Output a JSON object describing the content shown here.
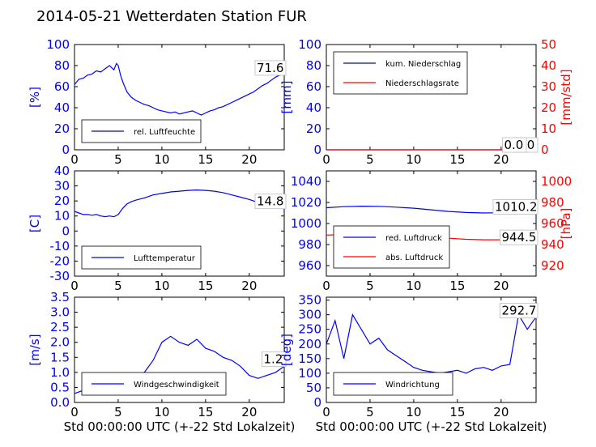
{
  "title": "2014-05-21 Wetterdaten Station FUR",
  "colors": {
    "blue": "#0000ff",
    "red": "#ff0000",
    "black": "#000000",
    "lightblue": "#8080ff"
  },
  "chart_data": [
    {
      "id": "humidity",
      "type": "line",
      "xlim": [
        0,
        24
      ],
      "ylim": [
        0,
        100
      ],
      "xticks": [
        0,
        5,
        10,
        15,
        20
      ],
      "yticks": [
        0,
        20,
        40,
        60,
        80,
        100
      ],
      "ylabel": "[%]",
      "annotation": "71.6",
      "legend": {
        "placement": "lower-left",
        "entries": [
          "rel. Luftfeuchte"
        ]
      },
      "series": [
        {
          "name": "rel. Luftfeuchte",
          "color": "#0000ff",
          "x": [
            0,
            0.5,
            1,
            1.5,
            2,
            2.5,
            3,
            3.5,
            4,
            4.5,
            4.8,
            5.0,
            5.3,
            5.6,
            6,
            6.5,
            7,
            7.5,
            8,
            8.5,
            9,
            9.5,
            10,
            10.5,
            11,
            11.5,
            12,
            12.5,
            13,
            13.5,
            14,
            14.5,
            15,
            15.5,
            16,
            16.5,
            17,
            17.5,
            18,
            18.5,
            19,
            19.5,
            20,
            20.5,
            21,
            21.5,
            22,
            22.5,
            23,
            23.5,
            24
          ],
          "y": [
            62,
            67,
            68,
            71,
            72,
            75,
            74,
            77,
            80,
            76,
            82,
            80,
            70,
            63,
            55,
            50,
            47,
            45,
            43,
            42,
            40,
            38,
            37,
            36,
            35,
            36,
            34,
            35,
            36,
            37,
            35,
            33,
            35,
            37,
            38,
            40,
            41,
            43,
            45,
            47,
            49,
            51,
            53,
            55,
            58,
            61,
            63,
            66,
            69,
            71,
            71.6
          ]
        }
      ]
    },
    {
      "id": "precip",
      "type": "line",
      "xlim": [
        0,
        24
      ],
      "ylim": [
        0,
        100
      ],
      "ylim_right": [
        0,
        50
      ],
      "xticks": [
        0,
        5,
        10,
        15,
        20
      ],
      "yticks": [
        0,
        20,
        40,
        60,
        80,
        100
      ],
      "yticks_right": [
        0,
        10,
        20,
        30,
        40,
        50
      ],
      "ylabel": "[mm]",
      "ylabel_right": "[mm/std]",
      "annotation": "0.0",
      "annotation2": "0.0",
      "legend": {
        "placement": "upper-left",
        "entries": [
          "kum. Niederschlag",
          "Niederschlagsrate"
        ]
      },
      "series": [
        {
          "name": "kum. Niederschlag",
          "color": "#0000ff",
          "x": [
            0,
            24
          ],
          "y": [
            0,
            0
          ]
        },
        {
          "name": "Niederschlagsrate",
          "color": "#ff0000",
          "x": [
            0,
            24
          ],
          "y": [
            0,
            0
          ],
          "axis": "right"
        }
      ]
    },
    {
      "id": "temp",
      "type": "line",
      "xlim": [
        0,
        24
      ],
      "ylim": [
        -30,
        40
      ],
      "xticks": [
        0,
        5,
        10,
        15,
        20
      ],
      "yticks": [
        -30,
        -20,
        -10,
        0,
        10,
        20,
        30,
        40
      ],
      "ylabel": "[C]",
      "annotation": "14.8",
      "legend": {
        "placement": "lower-left",
        "entries": [
          "Lufttemperatur"
        ]
      },
      "series": [
        {
          "name": "Lufttemperatur",
          "color": "#0000ff",
          "x": [
            0,
            0.5,
            1,
            1.5,
            2,
            2.5,
            3,
            3.5,
            4,
            4.5,
            5,
            5.5,
            6,
            6.5,
            7,
            8,
            9,
            10,
            11,
            12,
            13,
            14,
            15,
            16,
            17,
            18,
            19,
            20,
            21,
            22,
            23,
            24
          ],
          "y": [
            13,
            12,
            11,
            11,
            10.5,
            11,
            10,
            9.5,
            10,
            9.5,
            11,
            15,
            18,
            19.5,
            20.5,
            22,
            24,
            25,
            26,
            26.5,
            27,
            27.3,
            27,
            26.5,
            25.5,
            24,
            22.5,
            21,
            19,
            17,
            16,
            14.8
          ]
        }
      ]
    },
    {
      "id": "pressure",
      "type": "line",
      "xlim": [
        0,
        24
      ],
      "ylim": [
        950,
        1050
      ],
      "ylim_right": [
        910,
        1010
      ],
      "xticks": [
        0,
        5,
        10,
        15,
        20
      ],
      "yticks": [
        960,
        980,
        1000,
        1020,
        1040
      ],
      "yticks_right": [
        920,
        940,
        960,
        980,
        1000
      ],
      "ylabel_right": "[hPa]",
      "annotation": "1010.2",
      "annotation2": "944.5",
      "legend": {
        "placement": "lower-left",
        "entries": [
          "red. Luftdruck",
          "abs. Luftdruck"
        ]
      },
      "series": [
        {
          "name": "red. Luftdruck",
          "color": "#0000ff",
          "x": [
            0,
            2,
            4,
            6,
            8,
            10,
            12,
            14,
            16,
            18,
            20,
            22,
            24
          ],
          "y": [
            1015,
            1016,
            1016.5,
            1016.3,
            1015.5,
            1014.5,
            1013,
            1011.5,
            1010.5,
            1010,
            1010.2,
            1010.5,
            1010.2
          ]
        },
        {
          "name": "abs. Luftdruck",
          "color": "#ff0000",
          "axis": "right",
          "x": [
            0,
            2,
            4,
            6,
            8,
            10,
            12,
            14,
            16,
            18,
            20,
            22,
            24
          ],
          "y": [
            949,
            949.5,
            950,
            950,
            949.5,
            948.5,
            947.5,
            946,
            945,
            944.5,
            944.5,
            944.8,
            944.5
          ]
        }
      ]
    },
    {
      "id": "wind",
      "type": "line",
      "xlim": [
        0,
        24
      ],
      "ylim": [
        0,
        3.5
      ],
      "xticks": [
        0,
        5,
        10,
        15,
        20
      ],
      "yticks": [
        0.0,
        0.5,
        1.0,
        1.5,
        2.0,
        2.5,
        3.0,
        3.5
      ],
      "ylabel": "[m/s]",
      "xlabel": "Std 00:00:00 UTC (+-22 Std Lokalzeit)",
      "annotation": "1.2",
      "legend": {
        "placement": "lower-left",
        "entries": [
          "Windgeschwindigkeit"
        ]
      },
      "series": [
        {
          "name": "Windgeschwindigkeit",
          "color": "#0000ff",
          "x": [
            0,
            1,
            2,
            3,
            4,
            5,
            6,
            7,
            8,
            9,
            10,
            11,
            12,
            13,
            14,
            15,
            16,
            17,
            18,
            19,
            20,
            21,
            22,
            23,
            24
          ],
          "y": [
            0.3,
            0.4,
            0.6,
            0.5,
            0.6,
            0.5,
            0.7,
            0.9,
            1.0,
            1.4,
            2.0,
            2.2,
            2.0,
            1.9,
            2.1,
            1.8,
            1.7,
            1.5,
            1.4,
            1.2,
            0.9,
            0.8,
            0.9,
            1.0,
            1.2
          ]
        }
      ]
    },
    {
      "id": "winddir",
      "type": "line",
      "xlim": [
        0,
        24
      ],
      "ylim": [
        0,
        360
      ],
      "xticks": [
        0,
        5,
        10,
        15,
        20
      ],
      "yticks": [
        0,
        50,
        100,
        150,
        200,
        250,
        300,
        350
      ],
      "ylabel": "[deg]",
      "xlabel": "Std 00:00:00 UTC (+-22 Std Lokalzeit)",
      "annotation": "292.7",
      "legend": {
        "placement": "lower-left",
        "entries": [
          "Windrichtung"
        ]
      },
      "series": [
        {
          "name": "Windrichtung",
          "color": "#0000ff",
          "x": [
            0,
            1,
            2,
            3,
            4,
            5,
            6,
            7,
            8,
            9,
            10,
            11,
            12,
            13,
            14,
            15,
            16,
            17,
            18,
            19,
            20,
            21,
            22,
            23,
            24
          ],
          "y": [
            200,
            280,
            150,
            300,
            250,
            200,
            220,
            180,
            160,
            140,
            120,
            110,
            105,
            100,
            105,
            110,
            100,
            115,
            120,
            110,
            125,
            130,
            300,
            250,
            292.7
          ]
        }
      ]
    }
  ]
}
